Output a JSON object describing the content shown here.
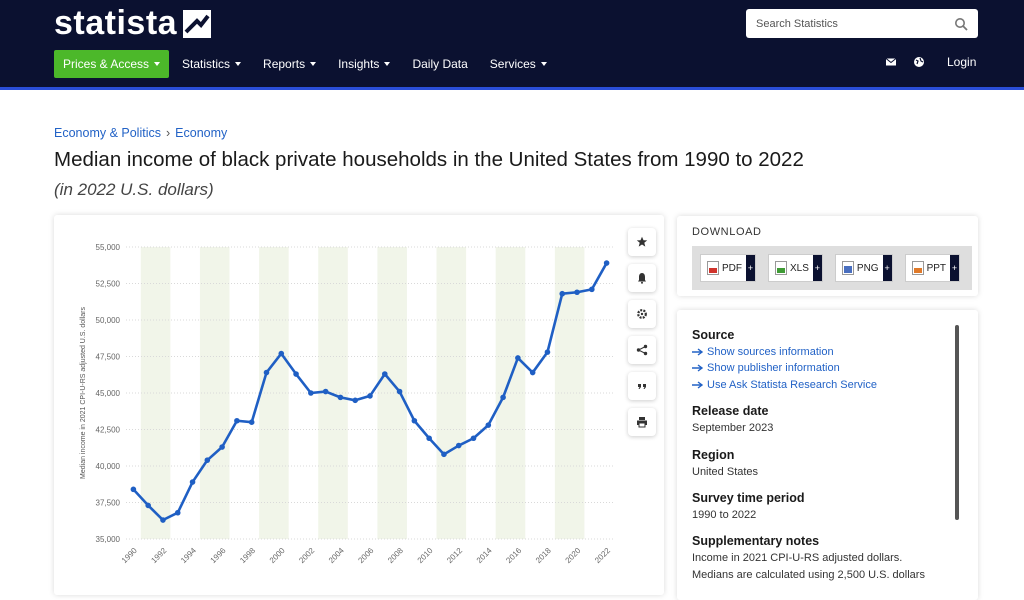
{
  "header": {
    "logo": "statista",
    "search_placeholder": "Search Statistics",
    "nav": {
      "prices": "Prices & Access",
      "items": [
        "Statistics",
        "Reports",
        "Insights",
        "Daily Data",
        "Services"
      ]
    },
    "login": "Login"
  },
  "breadcrumb": [
    "Economy & Politics",
    "Economy"
  ],
  "title": "Median income of black private households in the United States from 1990 to 2022",
  "subtitle": "(in 2022 U.S. dollars)",
  "download": {
    "title": "DOWNLOAD",
    "buttons": [
      "PDF",
      "XLS",
      "PNG",
      "PPT"
    ],
    "plus": "+"
  },
  "info": {
    "source_h": "Source",
    "source_links": [
      "Show sources information",
      "Show publisher information",
      "Use Ask Statista Research Service"
    ],
    "release_h": "Release date",
    "release_v": "September 2023",
    "region_h": "Region",
    "region_v": "United States",
    "survey_h": "Survey time period",
    "survey_v": "1990 to 2022",
    "notes_h": "Supplementary notes",
    "notes_v1": "Income in 2021 CPI-U-RS adjusted dollars.",
    "notes_v2": "Medians are calculated using 2,500 U.S. dollars"
  },
  "colors": {
    "header_bg": "#0b1130",
    "accent_green": "#4cb82a",
    "line": "#1f5fc4",
    "link": "#2262c6",
    "band": "#f1f5e9"
  },
  "chart_data": {
    "type": "line",
    "ylabel": "Median income in 2021 CPI-U-RS adjusted U.S. dollars",
    "ylim": [
      35000,
      55000
    ],
    "yticks": [
      "35,000",
      "37,500",
      "40,000",
      "42,500",
      "45,000",
      "47,500",
      "50,000",
      "52,500",
      "55,000"
    ],
    "xticks": [
      "1990",
      "1992",
      "1994",
      "1996",
      "1998",
      "2000",
      "2002",
      "2004",
      "2006",
      "2008",
      "2010",
      "2012",
      "2014",
      "2016",
      "2018",
      "2020",
      "2022"
    ],
    "x": [
      1990,
      1991,
      1992,
      1993,
      1994,
      1995,
      1996,
      1997,
      1998,
      1999,
      2000,
      2001,
      2002,
      2003,
      2004,
      2005,
      2006,
      2007,
      2008,
      2009,
      2010,
      2011,
      2012,
      2013,
      2014,
      2015,
      2016,
      2017,
      2018,
      2019,
      2020,
      2021,
      2022
    ],
    "values": [
      38400,
      37300,
      36300,
      36800,
      38900,
      40400,
      41300,
      43100,
      43000,
      46400,
      47700,
      46300,
      45000,
      45100,
      44700,
      44500,
      44800,
      46300,
      45100,
      43100,
      41900,
      40800,
      41400,
      41900,
      42800,
      44700,
      47400,
      46400,
      47800,
      51800,
      51900,
      52100,
      53900
    ],
    "grid": true,
    "alternating_year_bands": true
  }
}
